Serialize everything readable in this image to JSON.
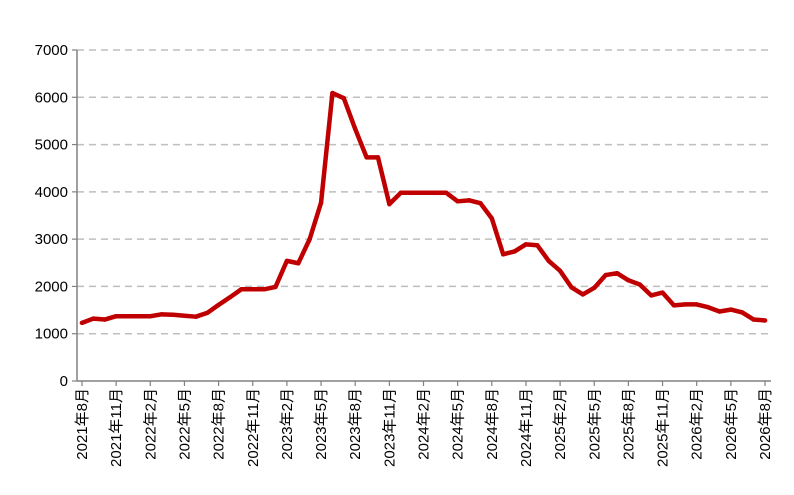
{
  "chart_data": {
    "type": "line",
    "title": "",
    "xlabel": "",
    "ylabel": "",
    "ylim": [
      0,
      7000
    ],
    "yticks": [
      0,
      1000,
      2000,
      3000,
      4000,
      5000,
      6000,
      7000
    ],
    "grid": "horizontal-dashed",
    "legend": "none",
    "x_tick_labels": [
      "2021年8月",
      "2021年11月",
      "2022年2月",
      "2022年5月",
      "2022年8月",
      "2022年11月",
      "2023年2月",
      "2023年5月",
      "2023年8月",
      "2023年11月",
      "2024年2月",
      "2024年5月",
      "2024年8月",
      "2024年11月",
      "2025年2月",
      "2025年5月",
      "2025年8月",
      "2025年11月",
      "2026年2月",
      "2026年5月",
      "2026年8月"
    ],
    "series": [
      {
        "color": "#c00000",
        "x": [
          "2021年8月",
          "2021年9月",
          "2021年10月",
          "2021年11月",
          "2021年12月",
          "2022年1月",
          "2022年2月",
          "2022年3月",
          "2022年4月",
          "2022年5月",
          "2022年6月",
          "2022年7月",
          "2022年8月",
          "2022年9月",
          "2022年10月",
          "2022年11月",
          "2022年12月",
          "2023年1月",
          "2023年2月",
          "2023年3月",
          "2023年4月",
          "2023年5月",
          "2023年6月",
          "2023年7月",
          "2023年8月",
          "2023年9月",
          "2023年10月",
          "2023年11月",
          "2023年12月",
          "2024年1月",
          "2024年2月",
          "2024年3月",
          "2024年4月",
          "2024年5月",
          "2024年6月",
          "2024年7月",
          "2024年8月",
          "2024年9月",
          "2024年10月",
          "2024年11月",
          "2024年12月",
          "2025年1月",
          "2025年2月",
          "2025年3月",
          "2025年4月",
          "2025年5月",
          "2025年6月",
          "2025年7月",
          "2025年8月",
          "2025年9月",
          "2025年10月",
          "2025年11月",
          "2025年12月",
          "2026年1月",
          "2026年2月",
          "2026年3月",
          "2026年4月",
          "2026年5月",
          "2026年6月",
          "2026年7月",
          "2026年8月"
        ],
        "values": [
          1230,
          1320,
          1300,
          1370,
          1370,
          1370,
          1370,
          1410,
          1400,
          1380,
          1360,
          1440,
          1610,
          1770,
          1940,
          1940,
          1940,
          1990,
          2540,
          2490,
          3000,
          3770,
          6090,
          5980,
          5330,
          4730,
          4730,
          3740,
          3980,
          3980,
          3980,
          3980,
          3980,
          3800,
          3820,
          3760,
          3440,
          2680,
          2740,
          2890,
          2870,
          2540,
          2330,
          1980,
          1830,
          1970,
          2240,
          2280,
          2130,
          2040,
          1810,
          1870,
          1600,
          1620,
          1620,
          1560,
          1470,
          1510,
          1450,
          1300,
          1280
        ]
      }
    ]
  }
}
